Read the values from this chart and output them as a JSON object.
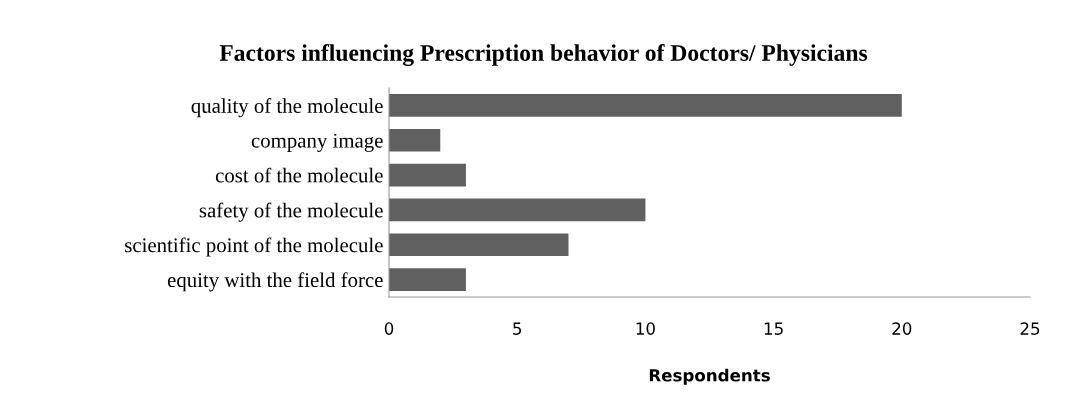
{
  "chart_data": {
    "type": "bar",
    "orientation": "horizontal",
    "title": "Factors influencing Prescription behavior of Doctors/ Physicians",
    "xlabel": "Respondents",
    "categories": [
      "quality of the molecule",
      "company image",
      "cost of the molecule",
      "safety of the molecule",
      "scientific point of the molecule",
      "equity with the field force"
    ],
    "values": [
      20,
      2,
      3,
      10,
      7,
      3
    ],
    "color": "#606060",
    "xlim": [
      0,
      25
    ],
    "xticks": [
      0,
      5,
      10,
      15,
      20,
      25
    ],
    "grid": false,
    "legend": false
  }
}
